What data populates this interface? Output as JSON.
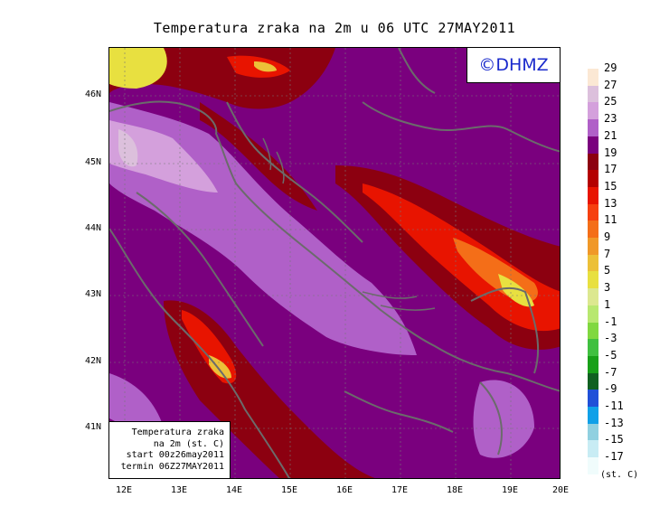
{
  "title": "Temperatura zraka na 2m u 06 UTC 27MAY2011",
  "logo": "©DHMZ",
  "info": {
    "line1": "Temperatura zraka",
    "line2": "na 2m (st. C)",
    "line3": "start 00z26may2011",
    "line4": "termin 06Z27MAY2011"
  },
  "axes": {
    "lat_labels": [
      "46N",
      "45N",
      "44N",
      "43N",
      "42N",
      "41N"
    ],
    "lon_labels": [
      "12E",
      "13E",
      "14E",
      "15E",
      "16E",
      "17E",
      "18E",
      "19E",
      "20E"
    ]
  },
  "legend": {
    "unit": "(st. C)",
    "labels": [
      "29",
      "27",
      "25",
      "23",
      "21",
      "19",
      "17",
      "15",
      "13",
      "11",
      "9",
      "7",
      "5",
      "3",
      "1",
      "-1",
      "-3",
      "-5",
      "-7",
      "-9",
      "-11",
      "-13",
      "-15",
      "-17"
    ],
    "colors": [
      "#fbe8d4",
      "#dcc0dc",
      "#d4a0dc",
      "#b060c8",
      "#7a007e",
      "#8c0010",
      "#b40000",
      "#e81400",
      "#f64010",
      "#f46e18",
      "#f09828",
      "#ecc038",
      "#e8e040",
      "#dce890",
      "#b8e870",
      "#80d840",
      "#40c040",
      "#18a018",
      "#106020",
      "#2050d8",
      "#10a0e8",
      "#90d0e0",
      "#c8ecf4",
      "#f0fcfc"
    ]
  }
}
